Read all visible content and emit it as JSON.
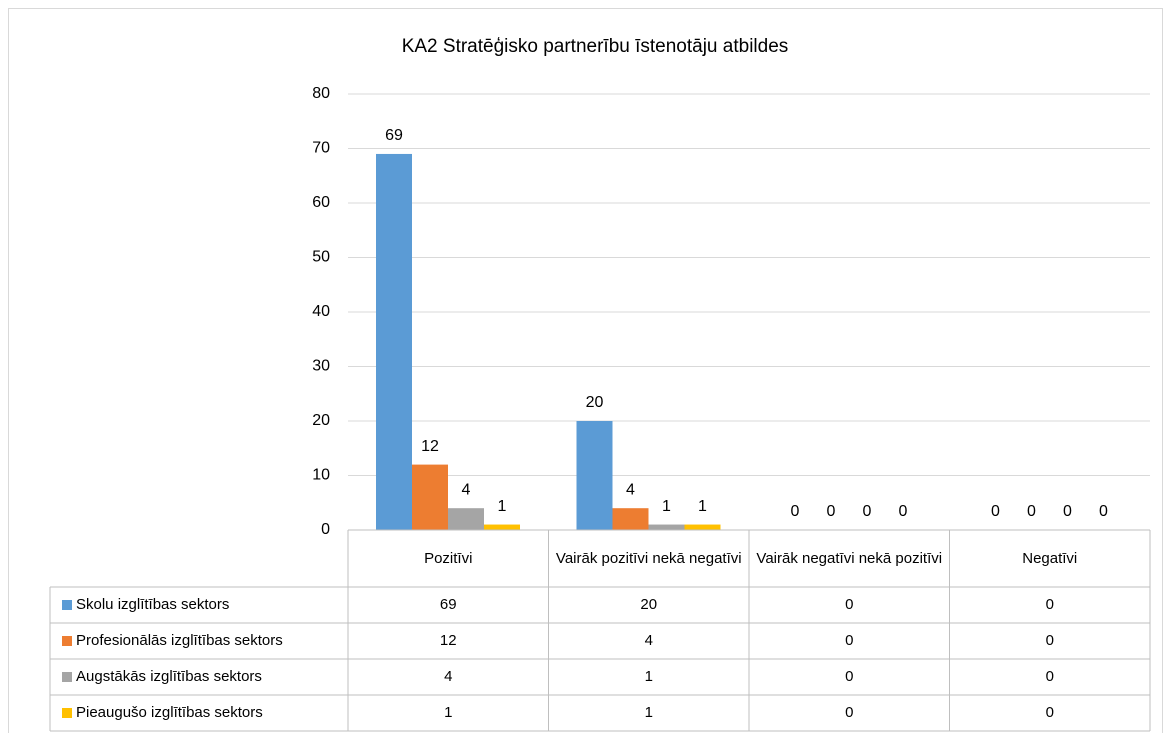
{
  "chart_data": {
    "type": "bar",
    "title": "KA2 Stratēģisko partnerību īstenotāju atbildes",
    "categories": [
      "Pozitīvi",
      "Vairāk pozitīvi nekā negatīvi",
      "Vairāk negatīvi nekā pozitīvi",
      "Negatīvi"
    ],
    "series": [
      {
        "name": "Skolu izglītības sektors",
        "color": "#5b9bd5",
        "values": [
          69,
          20,
          0,
          0
        ]
      },
      {
        "name": "Profesionālās izglītības sektors",
        "color": "#ed7d31",
        "values": [
          12,
          4,
          0,
          0
        ]
      },
      {
        "name": "Augstākās izglītības sektors",
        "color": "#a5a5a5",
        "values": [
          4,
          1,
          0,
          0
        ]
      },
      {
        "name": "Pieaugušo izglītības sektors",
        "color": "#ffc000",
        "values": [
          1,
          1,
          0,
          0
        ]
      }
    ],
    "ylim": [
      0,
      80
    ],
    "yticks": [
      0,
      10,
      20,
      30,
      40,
      50,
      60,
      70,
      80
    ],
    "grid": true
  }
}
